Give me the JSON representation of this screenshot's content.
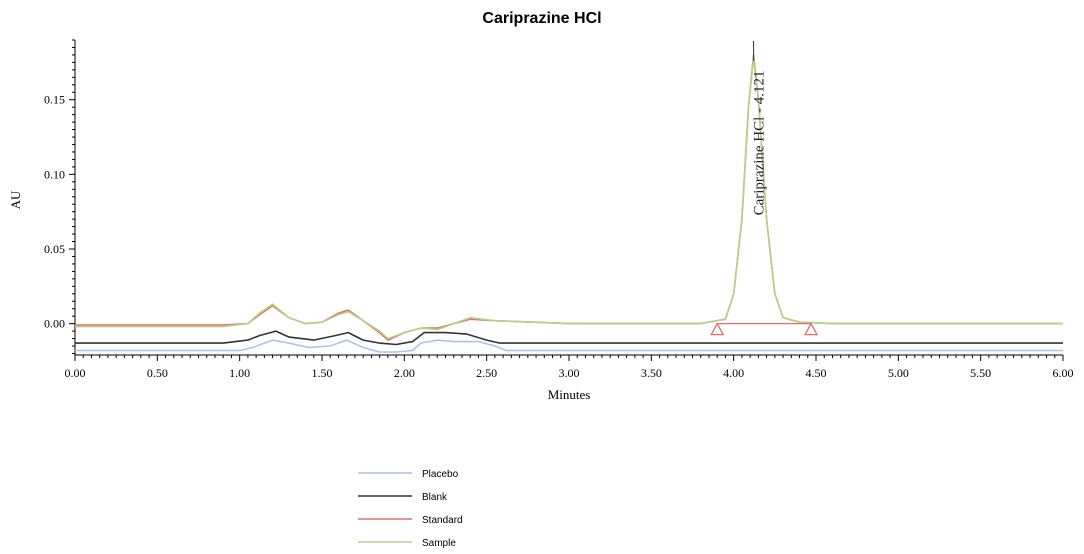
{
  "chart_data": {
    "type": "line",
    "title": "Cariprazine HCl",
    "xlabel": "Minutes",
    "ylabel": "AU",
    "xlim": [
      0,
      6
    ],
    "ylim": [
      -0.021,
      0.19
    ],
    "x_ticks": [
      "0.00",
      "0.50",
      "1.00",
      "1.50",
      "2.00",
      "2.50",
      "3.00",
      "3.50",
      "4.00",
      "4.50",
      "5.00",
      "5.50",
      "6.00"
    ],
    "y_ticks": [
      "0.00",
      "0.05",
      "0.10",
      "0.15"
    ],
    "grid": false,
    "legend_position": "bottom-left",
    "peak_annotation": {
      "text": "Cariprazine HCl - 4.121",
      "x": 4.121,
      "y": 0.18
    },
    "integration_markers": {
      "start": 3.9,
      "end": 4.47,
      "baseline": 0.0
    },
    "series": [
      {
        "name": "Placebo",
        "color": "#a9c4ea",
        "x": [
          0.0,
          1.0,
          1.08,
          1.2,
          1.3,
          1.42,
          1.55,
          1.65,
          1.75,
          1.85,
          1.95,
          2.05,
          2.1,
          2.2,
          2.3,
          2.45,
          2.55,
          2.62,
          6.0
        ],
        "y": [
          -0.018,
          -0.018,
          -0.016,
          -0.011,
          -0.013,
          -0.016,
          -0.015,
          -0.011,
          -0.016,
          -0.019,
          -0.019,
          -0.018,
          -0.013,
          -0.011,
          -0.012,
          -0.012,
          -0.015,
          -0.018,
          -0.018
        ]
      },
      {
        "name": "Blank",
        "color": "#333333",
        "x": [
          0.0,
          0.9,
          1.05,
          1.12,
          1.22,
          1.3,
          1.45,
          1.58,
          1.66,
          1.75,
          1.85,
          1.95,
          2.05,
          2.12,
          2.25,
          2.38,
          2.5,
          2.58,
          6.0
        ],
        "y": [
          -0.013,
          -0.013,
          -0.011,
          -0.008,
          -0.005,
          -0.009,
          -0.011,
          -0.008,
          -0.006,
          -0.011,
          -0.013,
          -0.014,
          -0.012,
          -0.006,
          -0.006,
          -0.007,
          -0.011,
          -0.013,
          -0.013
        ]
      },
      {
        "name": "Standard",
        "color": "#e86c6c",
        "x": [
          0.0,
          0.7,
          0.9,
          1.05,
          1.12,
          1.2,
          1.3,
          1.4,
          1.5,
          1.6,
          1.66,
          1.75,
          1.85,
          1.9,
          2.0,
          2.1,
          2.2,
          2.3,
          2.4,
          2.55,
          3.0,
          3.8,
          3.95,
          4.0,
          4.05,
          4.09,
          4.121,
          4.15,
          4.2,
          4.25,
          4.3,
          4.4,
          4.6,
          6.0
        ],
        "y": [
          -0.001,
          -0.001,
          -0.001,
          0.0,
          0.006,
          0.012,
          0.004,
          0.0,
          0.001,
          0.007,
          0.009,
          0.002,
          -0.006,
          -0.011,
          -0.006,
          -0.003,
          -0.003,
          0.0,
          0.003,
          0.002,
          0.0,
          0.0,
          0.003,
          0.02,
          0.07,
          0.145,
          0.18,
          0.15,
          0.07,
          0.02,
          0.004,
          0.001,
          0.0,
          0.0
        ]
      },
      {
        "name": "Sample",
        "color": "#b2d48a",
        "x": [
          0.0,
          0.7,
          0.9,
          1.05,
          1.12,
          1.2,
          1.3,
          1.4,
          1.5,
          1.6,
          1.66,
          1.75,
          1.85,
          1.9,
          2.0,
          2.1,
          2.2,
          2.3,
          2.4,
          2.55,
          3.0,
          3.8,
          3.95,
          4.0,
          4.05,
          4.09,
          4.121,
          4.15,
          4.2,
          4.25,
          4.3,
          4.4,
          4.6,
          6.0
        ],
        "y": [
          -0.002,
          -0.002,
          -0.002,
          0.0,
          0.007,
          0.013,
          0.004,
          0.0,
          0.001,
          0.006,
          0.008,
          0.002,
          -0.005,
          -0.01,
          -0.006,
          -0.003,
          -0.004,
          0.0,
          0.004,
          0.002,
          0.0,
          0.0,
          0.003,
          0.02,
          0.07,
          0.145,
          0.178,
          0.15,
          0.07,
          0.02,
          0.004,
          0.001,
          0.0,
          0.0
        ]
      }
    ]
  }
}
